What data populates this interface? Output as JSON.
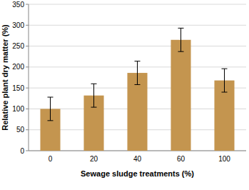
{
  "chart_data": {
    "type": "bar",
    "x_label": "Sewage sludge treatments (%)",
    "y_label": "Relative plant dry matter (%)",
    "categories": [
      "0",
      "20",
      "40",
      "60",
      "100"
    ],
    "values": [
      100,
      132,
      186,
      265,
      168
    ],
    "errors": [
      28,
      28,
      28,
      28,
      28
    ],
    "color": "#c4954f",
    "ylim": [
      0,
      350
    ],
    "yticks": [
      0,
      50,
      100,
      150,
      200,
      250,
      300,
      350
    ],
    "grid": true
  }
}
